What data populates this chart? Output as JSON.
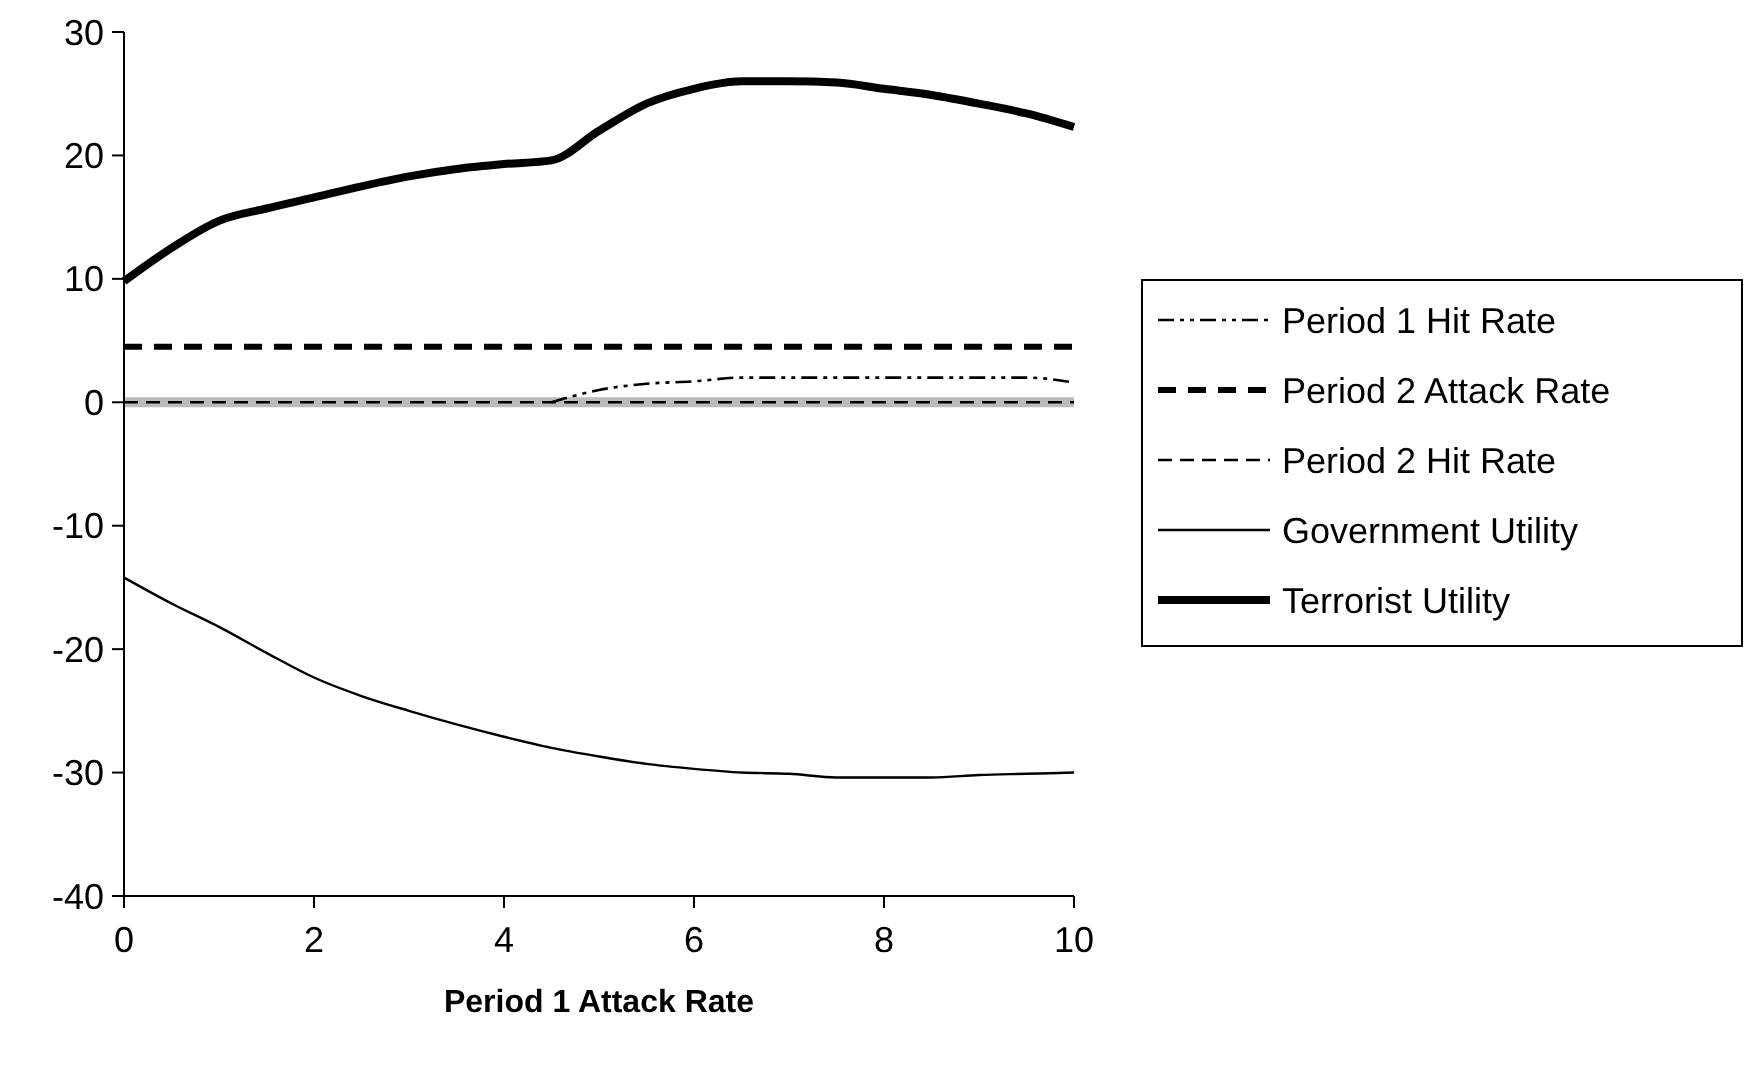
{
  "chart_data": {
    "type": "line",
    "xlabel": "Period 1 Attack Rate",
    "x": [
      0,
      0.5,
      1,
      1.5,
      2,
      2.5,
      3,
      3.5,
      4,
      4.5,
      5,
      5.5,
      6,
      6.5,
      7,
      7.5,
      8,
      8.5,
      9,
      9.5,
      10
    ],
    "xlim": [
      0,
      10
    ],
    "xticks": [
      0,
      2,
      4,
      6,
      8,
      10
    ],
    "ylim": [
      -40,
      30
    ],
    "yticks": [
      -40,
      -30,
      -20,
      -10,
      0,
      10,
      20,
      30
    ],
    "grid": false,
    "legend": "right",
    "marker": "none",
    "series": [
      {
        "color": "#bbbbbb",
        "line_style": "solid",
        "values": [
          0,
          0,
          0,
          0,
          0,
          0,
          0,
          0,
          0,
          0,
          0,
          0,
          0,
          0,
          0,
          0,
          0,
          0,
          0,
          0,
          0
        ]
      },
      {
        "name": "Period 1 Hit Rate",
        "color": "#000000",
        "line_style": "dashed",
        "values": [
          null,
          null,
          null,
          null,
          null,
          null,
          null,
          null,
          null,
          0,
          1.0,
          1.5,
          1.7,
          2.0,
          2.0,
          2.0,
          2.0,
          2.0,
          2.0,
          2.0,
          1.6
        ]
      },
      {
        "name": "Period 2 Attack Rate",
        "color": "#000000",
        "line_style": "dashed",
        "values": [
          4.5,
          4.5,
          4.5,
          4.5,
          4.5,
          4.5,
          4.5,
          4.5,
          4.5,
          4.5,
          4.5,
          4.5,
          4.5,
          4.5,
          4.5,
          4.5,
          4.5,
          4.5,
          4.5,
          4.5,
          4.5
        ]
      },
      {
        "name": "Period 2 Hit Rate",
        "color": "#000000",
        "line_style": "dashed",
        "values": [
          0,
          0,
          0,
          0,
          0,
          0,
          0,
          0,
          0,
          0,
          0,
          0,
          0,
          0,
          0,
          0,
          0,
          0,
          0,
          0,
          0
        ]
      },
      {
        "name": "Government Utility",
        "color": "#000000",
        "line_style": "solid",
        "values": [
          -14.2,
          -16.3,
          -18.2,
          -20.3,
          -22.3,
          -23.8,
          -25,
          -26.1,
          -27.1,
          -28,
          -28.7,
          -29.3,
          -29.7,
          -30,
          -30.1,
          -30.4,
          -30.4,
          -30.4,
          -30.2,
          -30.1,
          -30.0
        ]
      },
      {
        "name": "Terrorist Utility",
        "color": "#000000",
        "line_style": "solid",
        "values": [
          9.8,
          12.5,
          14.7,
          15.7,
          16.6,
          17.5,
          18.3,
          18.9,
          19.3,
          19.6,
          22,
          24.2,
          25.4,
          26,
          26,
          25.9,
          25.4,
          24.9,
          24.2,
          23.4,
          22.3
        ]
      }
    ]
  }
}
